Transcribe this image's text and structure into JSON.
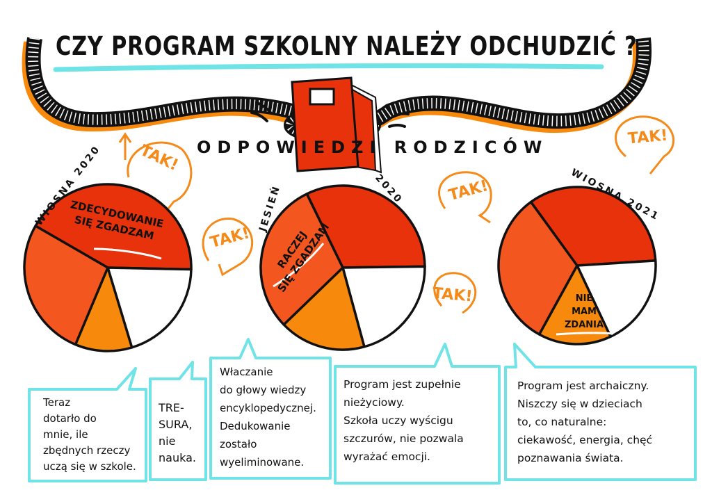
{
  "header": {
    "title": "CZY PROGRAM SZKOLNY NALEŻY ODCHUDZIĆ ?",
    "subtitle": "ODPOWIEDZI RODZICÓW"
  },
  "colors": {
    "strongly_agree": "#e8320c",
    "rather_agree": "#f3561e",
    "no_opinion": "#f7890c",
    "other": "#ffffff",
    "bubble_border": "#6fe3e6",
    "tak": "#f38a1a",
    "title_underline": "#6fe3e6"
  },
  "tak_labels": [
    "TAK!",
    "TAK!",
    "TAK!",
    "TAK!",
    "TAK!"
  ],
  "chart_data": [
    {
      "type": "pie",
      "title": "WIOSNA 2020",
      "categories": [
        "ZDECYDOWANIE SIĘ ZGADZAM",
        "",
        "",
        ""
      ],
      "values": [
        42,
        20,
        11,
        27
      ],
      "slice_colors": [
        "#e8320c",
        "#ffffff",
        "#f7890c",
        "#f3561e"
      ]
    },
    {
      "type": "pie",
      "title_parts": [
        "JESIEŃ",
        "2020"
      ],
      "categories": [
        "",
        "",
        "",
        "RACZEJ SIĘ ZGADZAM"
      ],
      "values": [
        32,
        21,
        17,
        30
      ],
      "slice_colors": [
        "#e8320c",
        "#ffffff",
        "#f7890c",
        "#f3561e"
      ]
    },
    {
      "type": "pie",
      "title": "WIOSNA 2021",
      "categories": [
        "",
        "",
        "NIE MAM ZDANIA",
        ""
      ],
      "values": [
        34,
        19,
        15,
        32
      ],
      "slice_colors": [
        "#e8320c",
        "#ffffff",
        "#f7890c",
        "#f3561e"
      ]
    }
  ],
  "pie_labels": {
    "p1_slice": [
      "ZDECYDOWANIE",
      "SIĘ ZGADZAM"
    ],
    "p2_slice": [
      "RACZEJ",
      "SIĘ ZGADZAM"
    ],
    "p3_slice": [
      "NIE",
      "MAM",
      "ZDANIA"
    ]
  },
  "bubbles": [
    {
      "lines": [
        "Teraz",
        "dotarło do",
        "mnie, ile",
        "zbędnych rzeczy",
        "uczą się w szkole."
      ]
    },
    {
      "lines": [
        "TRE-",
        "SURA,",
        "nie",
        "nauka."
      ]
    },
    {
      "lines": [
        "Właczanie",
        "do głowy wiedzy",
        "encyklopedycznej.",
        "Dedukowanie",
        "zostało",
        "wyeliminowane."
      ]
    },
    {
      "lines": [
        "Program jest zupełnie",
        "nieżyciowy.",
        "Szkoła uczy wyścigu",
        "szczurów, nie pozwala",
        "wyrażać emocji."
      ]
    },
    {
      "lines": [
        "Program jest archaiczny.",
        "Niszczy się w dzieciach",
        "to, co naturalne:",
        "ciekawość, energia, chęć",
        "poznawania świata."
      ]
    }
  ]
}
